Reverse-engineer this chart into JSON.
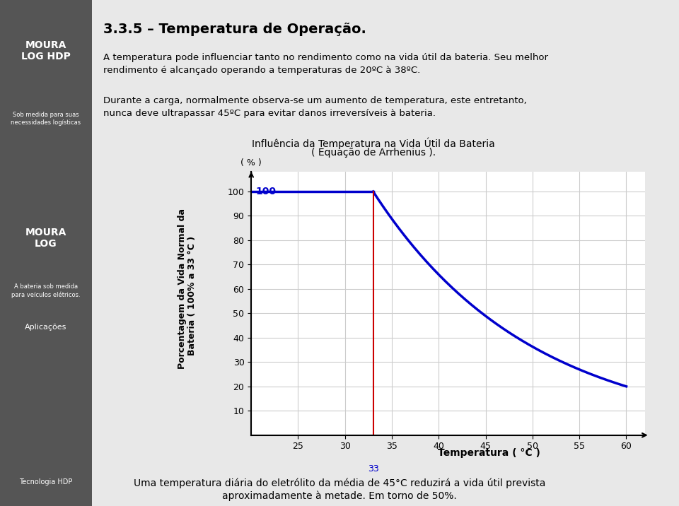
{
  "title_main": "3.3.5 – Temperatura de Operação.",
  "para1": "A temperatura pode influenciar tanto no rendimento como na vida útil da bateria. Seu melhor\nrendimento é alcançado operando a temperaturas de 20ºC à 38ºC.",
  "para2": "Durante a carga, normalmente observa-se um aumento de temperatura, este entretanto,\nnunca deve ultrapassar 45ºC para evitar danos irreversíveis à bateria.",
  "chart_title_line1": "Influência da Temperatura na Vida Útil da Bateria",
  "chart_title_line2": "( Equação de Arrhenius ).",
  "ylabel_line1": "Porcentagem da Vida Normal da",
  "ylabel_line2": "Bateria ( 100% a 33 °C )",
  "ylabel_unit": "( % )",
  "xlabel": "Temperatura ( °C )",
  "xlabel_33": "33",
  "yticks": [
    10,
    20,
    30,
    40,
    50,
    60,
    70,
    80,
    90,
    100
  ],
  "xticks": [
    25,
    30,
    35,
    40,
    45,
    50,
    55,
    60
  ],
  "xlim": [
    20,
    62
  ],
  "ylim": [
    0,
    108
  ],
  "x_flat_start": 20,
  "x_flat_end": 33,
  "x_curve_end": 60,
  "y_flat": 100,
  "y_curve_end": 20,
  "line_color": "#0000cc",
  "redline_color": "#cc0000",
  "grid_color": "#cccccc",
  "bg_color": "#f0f0f0",
  "plot_bg": "#ffffff",
  "label_100_color": "#0000cc",
  "footnote_line1": "Uma temperatura diária do eletrólito da média de 45°C reduzirá a vida útil prevista",
  "footnote_line2": "aproximadamente à metade. Em torno de 50%.",
  "sidebar_bg": "#555555",
  "content_bg": "#e8e8e8"
}
